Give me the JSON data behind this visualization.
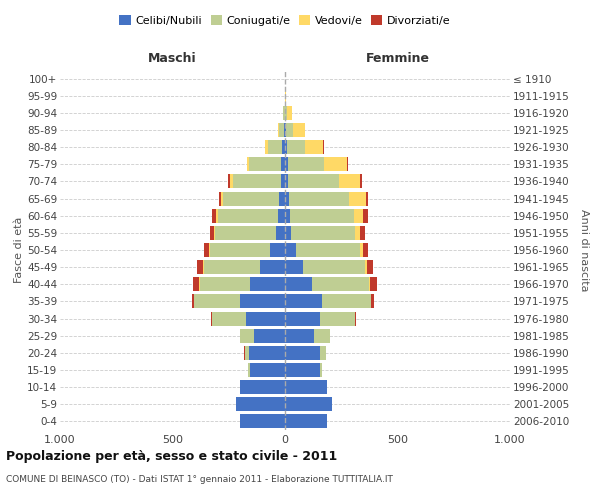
{
  "age_groups": [
    "0-4",
    "5-9",
    "10-14",
    "15-19",
    "20-24",
    "25-29",
    "30-34",
    "35-39",
    "40-44",
    "45-49",
    "50-54",
    "55-59",
    "60-64",
    "65-69",
    "70-74",
    "75-79",
    "80-84",
    "85-89",
    "90-94",
    "95-99",
    "100+"
  ],
  "birth_years": [
    "2006-2010",
    "2001-2005",
    "1996-2000",
    "1991-1995",
    "1986-1990",
    "1981-1985",
    "1976-1980",
    "1971-1975",
    "1966-1970",
    "1961-1965",
    "1956-1960",
    "1951-1955",
    "1946-1950",
    "1941-1945",
    "1936-1940",
    "1931-1935",
    "1926-1930",
    "1921-1925",
    "1916-1920",
    "1911-1915",
    "≤ 1910"
  ],
  "male": {
    "celibi": [
      200,
      220,
      200,
      155,
      160,
      140,
      175,
      200,
      155,
      110,
      65,
      40,
      30,
      25,
      20,
      18,
      12,
      5,
      2,
      0,
      0
    ],
    "coniugati": [
      0,
      0,
      2,
      8,
      20,
      60,
      150,
      205,
      225,
      250,
      270,
      270,
      270,
      250,
      210,
      140,
      65,
      20,
      5,
      0,
      0
    ],
    "vedovi": [
      0,
      0,
      0,
      0,
      0,
      0,
      1,
      1,
      2,
      3,
      5,
      5,
      8,
      10,
      15,
      10,
      10,
      5,
      2,
      0,
      0
    ],
    "divorziati": [
      0,
      0,
      0,
      0,
      1,
      2,
      5,
      8,
      25,
      30,
      22,
      18,
      15,
      8,
      8,
      2,
      2,
      0,
      0,
      0,
      0
    ]
  },
  "female": {
    "nubili": [
      185,
      210,
      185,
      155,
      155,
      130,
      155,
      165,
      120,
      80,
      48,
      28,
      22,
      18,
      15,
      12,
      8,
      4,
      2,
      0,
      0
    ],
    "coniugate": [
      0,
      0,
      2,
      8,
      25,
      70,
      155,
      215,
      255,
      275,
      285,
      285,
      285,
      265,
      225,
      160,
      80,
      30,
      8,
      2,
      0
    ],
    "vedove": [
      0,
      0,
      0,
      0,
      0,
      0,
      1,
      2,
      4,
      8,
      15,
      22,
      40,
      75,
      95,
      105,
      82,
      55,
      20,
      2,
      0
    ],
    "divorziate": [
      0,
      0,
      0,
      0,
      1,
      2,
      6,
      12,
      30,
      30,
      22,
      22,
      20,
      10,
      5,
      3,
      2,
      0,
      0,
      0,
      0
    ]
  },
  "color_celibi": "#4472C4",
  "color_coniugati": "#BFCE93",
  "color_vedovi": "#FFD966",
  "color_divorziati": "#C0392B",
  "title": "Popolazione per età, sesso e stato civile - 2011",
  "subtitle": "COMUNE DI BEINASCO (TO) - Dati ISTAT 1° gennaio 2011 - Elaborazione TUTTITALIA.IT",
  "xlabel_male": "Maschi",
  "xlabel_female": "Femmine",
  "ylabel": "Fasce di età",
  "ylabel_right": "Anni di nascita",
  "xmax": 1000,
  "background_color": "#ffffff"
}
